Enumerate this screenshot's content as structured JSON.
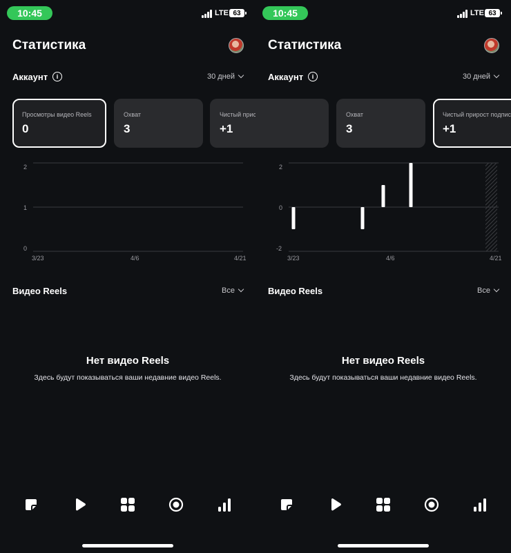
{
  "status_bar": {
    "time": "10:45",
    "network": "LTE",
    "battery": "63"
  },
  "header": {
    "title": "Статистика"
  },
  "account": {
    "label": "Аккаунт",
    "info_icon": "info-icon",
    "period": "30 дней"
  },
  "screens": [
    {
      "cards": [
        {
          "label": "Просмотры видео Reels",
          "value": "0",
          "selected": true
        },
        {
          "label": "Охват",
          "value": "3",
          "selected": false
        },
        {
          "label": "Чистый присмотры видео Reels",
          "value": "+1",
          "selected": false
        }
      ],
      "x_ticks": [
        "3/23",
        "4/6",
        "4/21"
      ],
      "y_ticks": [
        "2",
        "1",
        "0"
      ]
    },
    {
      "cards": [
        {
          "label": "",
          "value": "",
          "selected": false
        },
        {
          "label": "Охват",
          "value": "3",
          "selected": false
        },
        {
          "label": "Чистый прирост подписчиков",
          "value": "+1",
          "selected": true
        }
      ],
      "x_ticks": [
        "3/23",
        "4/6",
        "4/21"
      ],
      "y_ticks": [
        "2",
        "0",
        "-2"
      ]
    }
  ],
  "chart_data": [
    {
      "type": "bar",
      "ylim": [
        0,
        2
      ],
      "x_tick_labels": [
        "3/23",
        "4/6",
        "4/21"
      ],
      "y_tick_labels": [
        "2",
        "1",
        "0"
      ],
      "values": []
    },
    {
      "type": "bar",
      "ylim": [
        -2,
        2
      ],
      "x_tick_labels": [
        "3/23",
        "4/6",
        "4/21"
      ],
      "y_tick_labels": [
        "2",
        "0",
        "-2"
      ],
      "values": [
        {
          "x": "3/23",
          "y": -1
        },
        {
          "x": "4/2",
          "y": -1
        },
        {
          "x": "4/5",
          "y": 1
        },
        {
          "x": "4/9",
          "y": 2
        }
      ]
    }
  ],
  "reels": {
    "title": "Видео Reels",
    "filter": "Все",
    "empty_title": "Нет видео Reels",
    "empty_subtitle": "Здесь будут показываться ваши недавние видео Reels."
  },
  "tabbar": {
    "items": [
      "posts-icon",
      "reels-play-icon",
      "grid-icon",
      "live-icon",
      "stats-icon"
    ]
  },
  "colors": {
    "background": "#0f1114",
    "card": "#2a2b2e",
    "accent_green": "#34c759"
  }
}
